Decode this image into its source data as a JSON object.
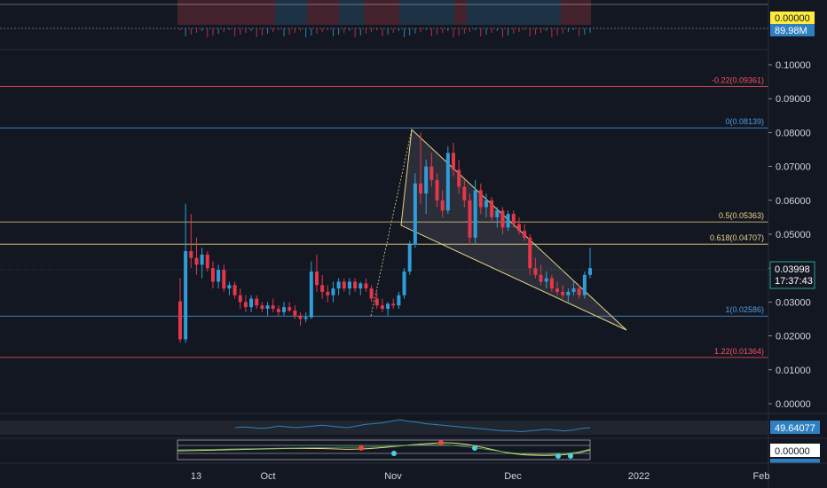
{
  "chart_data": {
    "type": "candlestick",
    "x_ticks": [
      "13",
      "Oct",
      "Nov",
      "Dec",
      "2022",
      "Feb"
    ],
    "y_ticks": [
      "0.10000",
      "0.09000",
      "0.08000",
      "0.07000",
      "0.06000",
      "0.05000",
      "0.04000",
      "0.03000",
      "0.02000",
      "0.01000",
      "0.00000"
    ],
    "ylim": [
      0,
      0.1
    ],
    "last_price": "0.03998",
    "countdown": "17:37:43",
    "fib_levels": [
      {
        "label": "-0.22(0.09361)",
        "value": 0.09361,
        "color": "#f7525f"
      },
      {
        "label": "0(0.08139)",
        "value": 0.08139,
        "color": "#4d9fe0"
      },
      {
        "label": "0.5(0.05363)",
        "value": 0.05363,
        "color": "#e8d48a"
      },
      {
        "label": "0.618(0.04707)",
        "value": 0.04707,
        "color": "#e8d48a"
      },
      {
        "label": "1(0.02586)",
        "value": 0.02586,
        "color": "#4d9fe0"
      },
      {
        "label": "1.22(0.01364)",
        "value": 0.01364,
        "color": "#f7525f"
      }
    ],
    "candles": [
      [
        0.0302,
        0.037,
        0.018,
        0.019
      ],
      [
        0.019,
        0.059,
        0.018,
        0.045
      ],
      [
        0.045,
        0.056,
        0.04,
        0.043
      ],
      [
        0.043,
        0.049,
        0.038,
        0.041
      ],
      [
        0.041,
        0.046,
        0.037,
        0.044
      ],
      [
        0.044,
        0.045,
        0.039,
        0.04
      ],
      [
        0.04,
        0.042,
        0.034,
        0.036
      ],
      [
        0.036,
        0.041,
        0.034,
        0.0395
      ],
      [
        0.0395,
        0.041,
        0.033,
        0.034
      ],
      [
        0.034,
        0.036,
        0.032,
        0.035
      ],
      [
        0.035,
        0.036,
        0.031,
        0.032
      ],
      [
        0.032,
        0.034,
        0.028,
        0.03
      ],
      [
        0.03,
        0.032,
        0.027,
        0.0285
      ],
      [
        0.0285,
        0.032,
        0.027,
        0.031
      ],
      [
        0.031,
        0.032,
        0.028,
        0.029
      ],
      [
        0.029,
        0.03,
        0.027,
        0.028
      ],
      [
        0.028,
        0.03,
        0.026,
        0.029
      ],
      [
        0.029,
        0.031,
        0.027,
        0.028
      ],
      [
        0.028,
        0.029,
        0.026,
        0.027
      ],
      [
        0.027,
        0.03,
        0.026,
        0.0285
      ],
      [
        0.0285,
        0.03,
        0.027,
        0.0275
      ],
      [
        0.0275,
        0.029,
        0.025,
        0.026
      ],
      [
        0.026,
        0.027,
        0.023,
        0.025
      ],
      [
        0.025,
        0.027,
        0.024,
        0.0255
      ],
      [
        0.0255,
        0.042,
        0.025,
        0.039
      ],
      [
        0.039,
        0.044,
        0.033,
        0.035
      ],
      [
        0.035,
        0.038,
        0.031,
        0.033
      ],
      [
        0.033,
        0.035,
        0.03,
        0.032
      ],
      [
        0.032,
        0.036,
        0.03,
        0.034
      ],
      [
        0.034,
        0.037,
        0.032,
        0.036
      ],
      [
        0.036,
        0.037,
        0.033,
        0.034
      ],
      [
        0.034,
        0.037,
        0.032,
        0.036
      ],
      [
        0.036,
        0.037,
        0.033,
        0.034
      ],
      [
        0.034,
        0.036,
        0.032,
        0.0355
      ],
      [
        0.0355,
        0.037,
        0.033,
        0.034
      ],
      [
        0.034,
        0.035,
        0.03,
        0.031
      ],
      [
        0.031,
        0.033,
        0.028,
        0.029
      ],
      [
        0.029,
        0.031,
        0.027,
        0.028
      ],
      [
        0.028,
        0.03,
        0.026,
        0.0295
      ],
      [
        0.0295,
        0.031,
        0.028,
        0.029
      ],
      [
        0.029,
        0.033,
        0.028,
        0.032
      ],
      [
        0.032,
        0.04,
        0.031,
        0.039
      ],
      [
        0.039,
        0.048,
        0.038,
        0.047
      ],
      [
        0.047,
        0.068,
        0.046,
        0.065
      ],
      [
        0.065,
        0.08,
        0.059,
        0.062
      ],
      [
        0.062,
        0.072,
        0.056,
        0.07
      ],
      [
        0.07,
        0.074,
        0.064,
        0.066
      ],
      [
        0.066,
        0.068,
        0.058,
        0.06
      ],
      [
        0.06,
        0.063,
        0.055,
        0.057
      ],
      [
        0.057,
        0.076,
        0.056,
        0.074
      ],
      [
        0.074,
        0.077,
        0.067,
        0.069
      ],
      [
        0.069,
        0.072,
        0.062,
        0.064
      ],
      [
        0.064,
        0.066,
        0.058,
        0.06
      ],
      [
        0.06,
        0.062,
        0.047,
        0.049
      ],
      [
        0.049,
        0.066,
        0.047,
        0.063
      ],
      [
        0.063,
        0.065,
        0.056,
        0.058
      ],
      [
        0.058,
        0.062,
        0.055,
        0.06
      ],
      [
        0.06,
        0.061,
        0.054,
        0.055
      ],
      [
        0.055,
        0.058,
        0.052,
        0.057
      ],
      [
        0.057,
        0.058,
        0.05,
        0.052
      ],
      [
        0.052,
        0.057,
        0.051,
        0.056
      ],
      [
        0.056,
        0.057,
        0.052,
        0.053
      ],
      [
        0.053,
        0.055,
        0.05,
        0.051
      ],
      [
        0.051,
        0.053,
        0.048,
        0.049
      ],
      [
        0.049,
        0.05,
        0.038,
        0.04
      ],
      [
        0.04,
        0.043,
        0.037,
        0.038
      ],
      [
        0.038,
        0.041,
        0.035,
        0.036
      ],
      [
        0.036,
        0.039,
        0.034,
        0.037
      ],
      [
        0.037,
        0.038,
        0.033,
        0.034
      ],
      [
        0.034,
        0.036,
        0.032,
        0.033
      ],
      [
        0.033,
        0.035,
        0.031,
        0.032
      ],
      [
        0.032,
        0.034,
        0.03,
        0.033
      ],
      [
        0.033,
        0.036,
        0.032,
        0.034
      ],
      [
        0.034,
        0.035,
        0.031,
        0.032
      ],
      [
        0.032,
        0.039,
        0.031,
        0.038
      ],
      [
        0.038,
        0.046,
        0.037,
        0.04
      ]
    ],
    "volume_badge": "89.98M",
    "top_badge": "0.00000",
    "rsi_value": "49.64077",
    "rsi_series": [
      50,
      51,
      50,
      49,
      50,
      52,
      51,
      50,
      51,
      52,
      53,
      52,
      51,
      50,
      52,
      54,
      55,
      56,
      58,
      60,
      58,
      57,
      55,
      54,
      53,
      52,
      51,
      50,
      49,
      48,
      47,
      46,
      46,
      45,
      46,
      47,
      48,
      47,
      46,
      47,
      49,
      50
    ],
    "osc_badge": "0.00000"
  }
}
